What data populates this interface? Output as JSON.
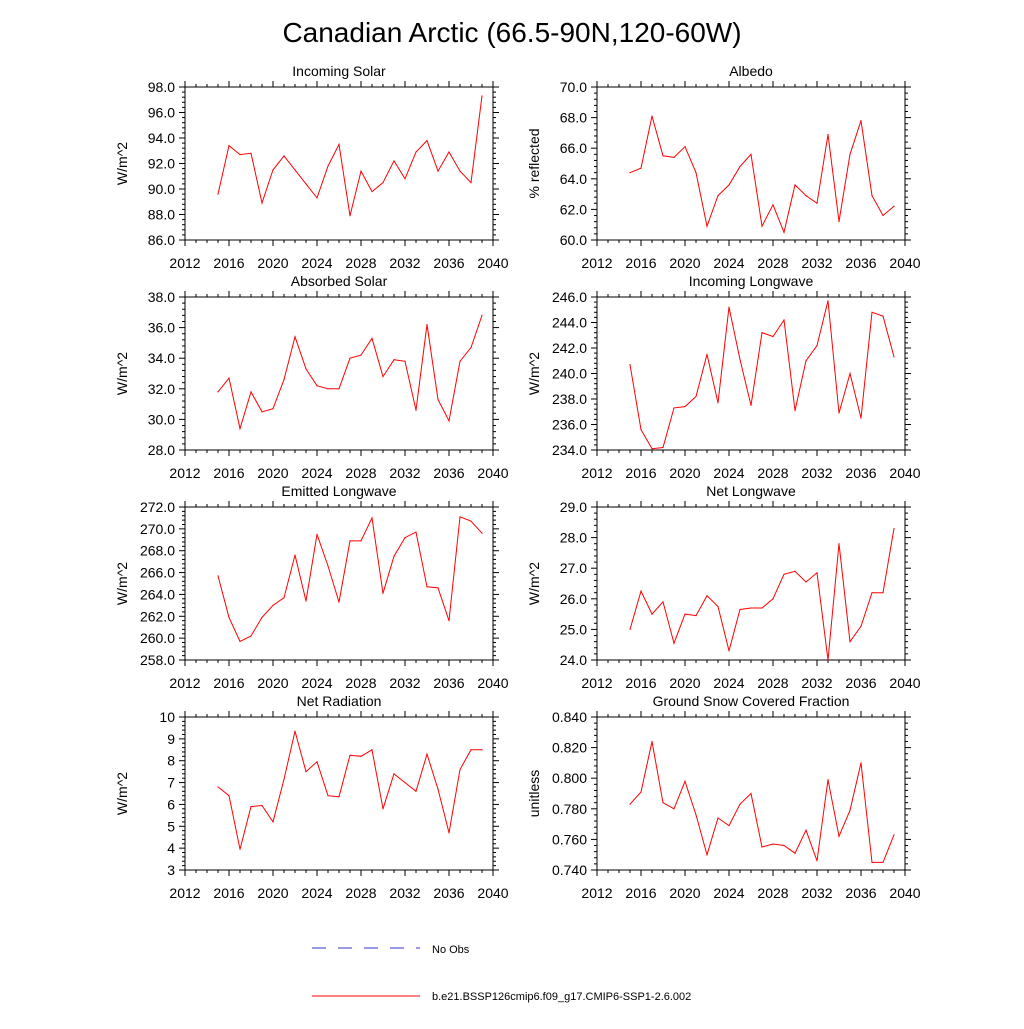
{
  "page_title": "Canadian Arctic (66.5-90N,120-60W)",
  "colors": {
    "model": "#ff0000",
    "obs": "#3333cc",
    "axis": "#000000"
  },
  "legend": {
    "obs_label": "No Obs",
    "model_label": "b.e21.BSSP126cmip6.f09_g17.CMIP6-SSP1-2.6.002"
  },
  "chart_data": [
    {
      "type": "line",
      "title": "Incoming Solar",
      "xlabel": "",
      "ylabel": "W/m^2",
      "xlim": [
        2012,
        2040
      ],
      "ylim": [
        86,
        98
      ],
      "xticks": [
        2012,
        2016,
        2020,
        2024,
        2028,
        2032,
        2036,
        2040
      ],
      "yticks": [
        86,
        88,
        90,
        92,
        94,
        96,
        98
      ],
      "ytick_labels": [
        "86.0",
        "88.0",
        "90.0",
        "92.0",
        "94.0",
        "96.0",
        "98.0"
      ],
      "series": [
        {
          "name": "b.e21.BSSP126cmip6.f09_g17.CMIP6-SSP1-2.6.002",
          "x": [
            2015,
            2016,
            2017,
            2018,
            2019,
            2020,
            2021,
            2022,
            2023,
            2024,
            2025,
            2026,
            2027,
            2028,
            2029,
            2030,
            2031,
            2032,
            2033,
            2034,
            2035,
            2036,
            2037,
            2038,
            2039
          ],
          "values": [
            89.6,
            93.4,
            92.7,
            92.8,
            88.9,
            91.5,
            92.6,
            91.5,
            90.4,
            89.3,
            91.8,
            93.5,
            87.9,
            91.4,
            89.8,
            90.5,
            92.2,
            90.8,
            92.9,
            93.8,
            91.4,
            92.9,
            91.4,
            90.5,
            97.3
          ]
        }
      ]
    },
    {
      "type": "line",
      "title": "Albedo",
      "xlabel": "",
      "ylabel": "% reflected",
      "xlim": [
        2012,
        2040
      ],
      "ylim": [
        60,
        70
      ],
      "xticks": [
        2012,
        2016,
        2020,
        2024,
        2028,
        2032,
        2036,
        2040
      ],
      "yticks": [
        60,
        62,
        64,
        66,
        68,
        70
      ],
      "ytick_labels": [
        "60.0",
        "62.0",
        "64.0",
        "66.0",
        "68.0",
        "70.0"
      ],
      "series": [
        {
          "name": "b.e21.BSSP126cmip6.f09_g17.CMIP6-SSP1-2.6.002",
          "x": [
            2015,
            2016,
            2017,
            2018,
            2019,
            2020,
            2021,
            2022,
            2023,
            2024,
            2025,
            2026,
            2027,
            2028,
            2029,
            2030,
            2031,
            2032,
            2033,
            2034,
            2035,
            2036,
            2037,
            2038,
            2039
          ],
          "values": [
            64.4,
            64.7,
            68.1,
            65.5,
            65.4,
            66.1,
            64.4,
            60.9,
            62.9,
            63.6,
            64.8,
            65.6,
            60.9,
            62.3,
            60.5,
            63.6,
            62.9,
            62.4,
            66.9,
            61.2,
            65.6,
            67.8,
            62.9,
            61.6,
            62.2
          ]
        }
      ]
    },
    {
      "type": "line",
      "title": "Absorbed Solar",
      "xlabel": "",
      "ylabel": "W/m^2",
      "xlim": [
        2012,
        2040
      ],
      "ylim": [
        28,
        38
      ],
      "xticks": [
        2012,
        2016,
        2020,
        2024,
        2028,
        2032,
        2036,
        2040
      ],
      "yticks": [
        28,
        30,
        32,
        34,
        36,
        38
      ],
      "ytick_labels": [
        "28.0",
        "30.0",
        "32.0",
        "34.0",
        "36.0",
        "38.0"
      ],
      "series": [
        {
          "name": "b.e21.BSSP126cmip6.f09_g17.CMIP6-SSP1-2.6.002",
          "x": [
            2015,
            2016,
            2017,
            2018,
            2019,
            2020,
            2021,
            2022,
            2023,
            2024,
            2025,
            2026,
            2027,
            2028,
            2029,
            2030,
            2031,
            2032,
            2033,
            2034,
            2035,
            2036,
            2037,
            2038,
            2039
          ],
          "values": [
            31.8,
            32.7,
            29.4,
            31.8,
            30.5,
            30.7,
            32.6,
            35.4,
            33.3,
            32.2,
            32.0,
            32.0,
            34.0,
            34.2,
            35.3,
            32.8,
            33.9,
            33.8,
            30.6,
            36.2,
            31.3,
            29.9,
            33.8,
            34.7,
            36.8
          ]
        }
      ]
    },
    {
      "type": "line",
      "title": "Incoming Longwave",
      "xlabel": "",
      "ylabel": "W/m^2",
      "xlim": [
        2012,
        2040
      ],
      "ylim": [
        234,
        246
      ],
      "xticks": [
        2012,
        2016,
        2020,
        2024,
        2028,
        2032,
        2036,
        2040
      ],
      "yticks": [
        234,
        236,
        238,
        240,
        242,
        244,
        246
      ],
      "ytick_labels": [
        "234.0",
        "236.0",
        "238.0",
        "240.0",
        "242.0",
        "244.0",
        "246.0"
      ],
      "series": [
        {
          "name": "b.e21.BSSP126cmip6.f09_g17.CMIP6-SSP1-2.6.002",
          "x": [
            2015,
            2016,
            2017,
            2018,
            2019,
            2020,
            2021,
            2022,
            2023,
            2024,
            2025,
            2026,
            2027,
            2028,
            2029,
            2030,
            2031,
            2032,
            2033,
            2034,
            2035,
            2036,
            2037,
            2038,
            2039
          ],
          "values": [
            240.7,
            235.6,
            234.1,
            234.2,
            237.3,
            237.4,
            238.2,
            241.5,
            237.7,
            245.2,
            241.1,
            237.5,
            243.2,
            242.9,
            244.2,
            237.1,
            241.0,
            242.2,
            245.7,
            236.9,
            240.0,
            236.5,
            244.8,
            244.5,
            241.3
          ]
        }
      ]
    },
    {
      "type": "line",
      "title": "Emitted Longwave",
      "xlabel": "",
      "ylabel": "W/m^2",
      "xlim": [
        2012,
        2040
      ],
      "ylim": [
        258,
        272
      ],
      "xticks": [
        2012,
        2016,
        2020,
        2024,
        2028,
        2032,
        2036,
        2040
      ],
      "yticks": [
        258,
        260,
        262,
        264,
        266,
        268,
        270,
        272
      ],
      "ytick_labels": [
        "258.0",
        "260.0",
        "262.0",
        "264.0",
        "266.0",
        "268.0",
        "270.0",
        "272.0"
      ],
      "series": [
        {
          "name": "b.e21.BSSP126cmip6.f09_g17.CMIP6-SSP1-2.6.002",
          "x": [
            2015,
            2016,
            2017,
            2018,
            2019,
            2020,
            2021,
            2022,
            2023,
            2024,
            2025,
            2026,
            2027,
            2028,
            2029,
            2030,
            2031,
            2032,
            2033,
            2034,
            2035,
            2036,
            2037,
            2038,
            2039
          ],
          "values": [
            265.7,
            261.9,
            259.7,
            260.2,
            261.9,
            263.0,
            263.7,
            267.6,
            263.4,
            269.5,
            266.6,
            263.3,
            268.9,
            268.9,
            271.0,
            264.1,
            267.5,
            269.2,
            269.7,
            264.7,
            264.6,
            261.6,
            271.1,
            270.7,
            269.6
          ]
        }
      ]
    },
    {
      "type": "line",
      "title": "Net Longwave",
      "xlabel": "",
      "ylabel": "W/m^2",
      "xlim": [
        2012,
        2040
      ],
      "ylim": [
        24,
        29
      ],
      "xticks": [
        2012,
        2016,
        2020,
        2024,
        2028,
        2032,
        2036,
        2040
      ],
      "yticks": [
        24,
        25,
        26,
        27,
        28,
        29
      ],
      "ytick_labels": [
        "24.0",
        "25.0",
        "26.0",
        "27.0",
        "28.0",
        "29.0"
      ],
      "series": [
        {
          "name": "b.e21.BSSP126cmip6.f09_g17.CMIP6-SSP1-2.6.002",
          "x": [
            2015,
            2016,
            2017,
            2018,
            2019,
            2020,
            2021,
            2022,
            2023,
            2024,
            2025,
            2026,
            2027,
            2028,
            2029,
            2030,
            2031,
            2032,
            2033,
            2034,
            2035,
            2036,
            2037,
            2038,
            2039
          ],
          "values": [
            25.0,
            26.25,
            25.5,
            25.9,
            24.55,
            25.5,
            25.45,
            26.1,
            25.75,
            24.3,
            25.65,
            25.7,
            25.7,
            26.0,
            26.8,
            26.9,
            26.55,
            26.85,
            24.0,
            27.8,
            24.6,
            25.1,
            26.2,
            26.2,
            28.3
          ]
        }
      ]
    },
    {
      "type": "line",
      "title": "Net Radiation",
      "xlabel": "",
      "ylabel": "W/m^2",
      "xlim": [
        2012,
        2040
      ],
      "ylim": [
        3,
        10
      ],
      "xticks": [
        2012,
        2016,
        2020,
        2024,
        2028,
        2032,
        2036,
        2040
      ],
      "yticks": [
        3,
        4,
        5,
        6,
        7,
        8,
        9,
        10
      ],
      "ytick_labels": [
        "3",
        "4",
        "5",
        "6",
        "7",
        "8",
        "9",
        "10"
      ],
      "series": [
        {
          "name": "b.e21.BSSP126cmip6.f09_g17.CMIP6-SSP1-2.6.002",
          "x": [
            2015,
            2016,
            2017,
            2018,
            2019,
            2020,
            2021,
            2022,
            2023,
            2024,
            2025,
            2026,
            2027,
            2028,
            2029,
            2030,
            2031,
            2032,
            2033,
            2034,
            2035,
            2036,
            2037,
            2038,
            2039
          ],
          "values": [
            6.8,
            6.4,
            3.95,
            5.9,
            5.95,
            5.2,
            7.15,
            9.35,
            7.5,
            7.95,
            6.4,
            6.35,
            8.25,
            8.2,
            8.5,
            5.8,
            7.4,
            7.0,
            6.6,
            8.3,
            6.7,
            4.7,
            7.6,
            8.5,
            8.5
          ]
        }
      ]
    },
    {
      "type": "line",
      "title": "Ground Snow Covered Fraction",
      "xlabel": "",
      "ylabel": "unitless",
      "xlim": [
        2012,
        2040
      ],
      "ylim": [
        0.74,
        0.84
      ],
      "xticks": [
        2012,
        2016,
        2020,
        2024,
        2028,
        2032,
        2036,
        2040
      ],
      "yticks": [
        0.74,
        0.76,
        0.78,
        0.8,
        0.82,
        0.84
      ],
      "ytick_labels": [
        "0.740",
        "0.760",
        "0.780",
        "0.800",
        "0.820",
        "0.840"
      ],
      "series": [
        {
          "name": "b.e21.BSSP126cmip6.f09_g17.CMIP6-SSP1-2.6.002",
          "x": [
            2015,
            2016,
            2017,
            2018,
            2019,
            2020,
            2021,
            2022,
            2023,
            2024,
            2025,
            2026,
            2027,
            2028,
            2029,
            2030,
            2031,
            2032,
            2033,
            2034,
            2035,
            2036,
            2037,
            2038,
            2039
          ],
          "values": [
            0.783,
            0.791,
            0.824,
            0.784,
            0.78,
            0.798,
            0.776,
            0.75,
            0.774,
            0.769,
            0.783,
            0.79,
            0.755,
            0.757,
            0.756,
            0.751,
            0.766,
            0.746,
            0.799,
            0.762,
            0.779,
            0.81,
            0.745,
            0.745,
            0.763
          ]
        }
      ]
    }
  ]
}
